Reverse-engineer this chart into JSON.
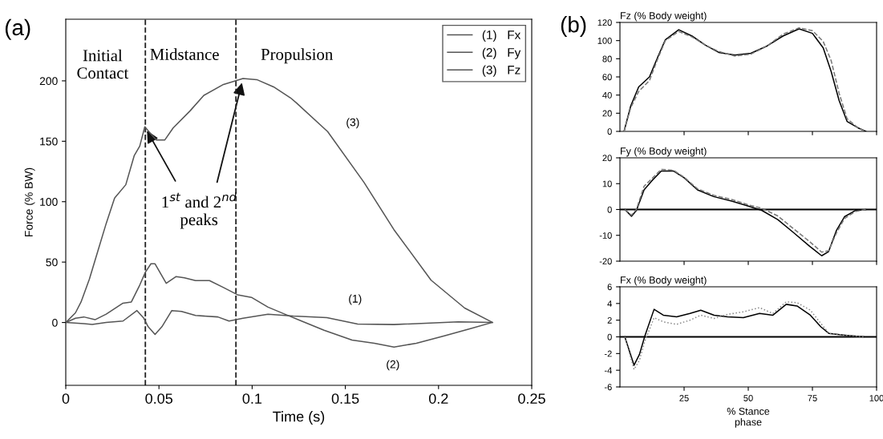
{
  "chart_data": [
    {
      "type": "line",
      "xlabel": "Time (s)",
      "ylabel": "Force (% BW)",
      "xlim": [
        0,
        0.25
      ],
      "ylim": [
        -52,
        251
      ],
      "xticks": [
        0,
        0.05,
        0.1,
        0.15,
        0.2,
        0.25
      ],
      "yticks": [
        0,
        50,
        100,
        150,
        200
      ],
      "grid": false,
      "legend": "top right",
      "series": [
        {
          "name": "(1)   Fx",
          "color": "#555555",
          "x": [
            0,
            0.0097,
            0.0142,
            0.0217,
            0.0307,
            0.0382,
            0.0419,
            0.0442,
            0.0479,
            0.0516,
            0.0569,
            0.0621,
            0.0696,
            0.0816,
            0.0876,
            0.0951,
            0.1085,
            0.122,
            0.1401,
            0.1566,
            0.1761,
            0.2106,
            0.2287
          ],
          "values": [
            0,
            -1,
            -1.6,
            0,
            1.2,
            9.9,
            3.5,
            -3.5,
            -9.9,
            -3.5,
            9.9,
            9.2,
            5.8,
            4.6,
            1.2,
            3.5,
            6.9,
            5.3,
            4,
            -1.3,
            -1.7,
            0.6,
            0
          ]
        },
        {
          "name": "(2)   Fy",
          "color": "#555555",
          "x": [
            0,
            0.0052,
            0.0097,
            0.0157,
            0.0217,
            0.0307,
            0.0352,
            0.0397,
            0.0427,
            0.0457,
            0.0479,
            0.0539,
            0.0591,
            0.0636,
            0.0696,
            0.0771,
            0.0846,
            0.0921,
            0.0996,
            0.1085,
            0.1175,
            0.1265,
            0.1386,
            0.1536,
            0.1656,
            0.1761,
            0.1881,
            0.2031,
            0.2167,
            0.2287
          ],
          "values": [
            0,
            3.5,
            4.6,
            2.3,
            6.9,
            16,
            17,
            31,
            41.6,
            48.6,
            48.6,
            32.4,
            38,
            37,
            34.7,
            34.7,
            29,
            23,
            20.8,
            12.7,
            6.9,
            1.2,
            -6.4,
            -14.5,
            -17.2,
            -20.3,
            -17.2,
            -11,
            -5.2,
            0
          ]
        },
        {
          "name": "(3)   Fz",
          "color": "#555555",
          "x": [
            0,
            0.0052,
            0.0082,
            0.0127,
            0.0172,
            0.0217,
            0.0262,
            0.0322,
            0.0367,
            0.0397,
            0.0424,
            0.0457,
            0.0486,
            0.0531,
            0.0576,
            0.0666,
            0.0741,
            0.0846,
            0.0951,
            0.1025,
            0.1115,
            0.1205,
            0.1236,
            0.1405,
            0.16,
            0.176,
            0.196,
            0.214,
            0.229
          ],
          "values": [
            0,
            8,
            17,
            36,
            59,
            82,
            103,
            114,
            138,
            146,
            162,
            156,
            151,
            151,
            161,
            175,
            188,
            197,
            202,
            201,
            195,
            186,
            182,
            158,
            116,
            77,
            35,
            12,
            0
          ]
        }
      ],
      "ref_lines": [
        {
          "axis": "x",
          "value": 0.0427,
          "color": "#222222",
          "line_style": "dashed"
        },
        {
          "axis": "x",
          "value": 0.0913,
          "color": "#222222",
          "line_style": "dashed"
        }
      ],
      "annotations": [
        "(a)",
        "Initial\nContact",
        "Midstance",
        "Propulsion",
        {
          "text": "1$^{st}$ and 2$^{nd}$\npeaks",
          "x": 0.0424,
          "y": 162
        },
        "(3)",
        "(1)",
        "(2)"
      ]
    },
    {
      "type": "line",
      "title": "Fz (% Body weight)",
      "xlim": [
        0,
        100
      ],
      "ylim": [
        0,
        120
      ],
      "xticks": [
        25,
        50,
        75,
        100
      ],
      "yticks": [
        0,
        20,
        40,
        60,
        80,
        100,
        120
      ],
      "tick_labels": "y",
      "grid": false,
      "series": [
        {
          "color": "#000000",
          "line_style": "solid",
          "x": [
            1.6,
            4.2,
            7.3,
            11.5,
            14.6,
            17.7,
            22.9,
            28.1,
            33.3,
            38.5,
            44.8,
            51,
            57.3,
            63.5,
            69.8,
            75,
            79.2,
            82.3,
            85.4,
            88.5,
            92.7,
            95.8
          ],
          "values": [
            0,
            28,
            49,
            60,
            81,
            101,
            112,
            105,
            95,
            87,
            84,
            86,
            94,
            105,
            113,
            108,
            92,
            66,
            34,
            11,
            4,
            0
          ]
        },
        {
          "color": "#777777",
          "line_style": "dashed",
          "x": [
            1.6,
            4.2,
            7.3,
            11.5,
            14.6,
            17.7,
            22.9,
            28.1,
            33.3,
            38.5,
            44.8,
            51,
            57.3,
            63.5,
            69.8,
            75,
            79.2,
            82.3,
            85.4,
            88.5,
            92.7,
            95.8
          ],
          "values": [
            0,
            26,
            44,
            56,
            79,
            100,
            110,
            104,
            95,
            88,
            83,
            85,
            94,
            107,
            114,
            111,
            99,
            78,
            42,
            14,
            4,
            0
          ]
        }
      ],
      "annotations": [
        "(b)"
      ]
    },
    {
      "type": "line",
      "title": "Fy (% Body weight)",
      "xlim": [
        0,
        100
      ],
      "ylim": [
        -20,
        20
      ],
      "xticks": [
        25,
        50,
        75,
        100
      ],
      "yticks": [
        -20,
        -10,
        0,
        10,
        20
      ],
      "tick_labels": "y",
      "grid": false,
      "series": [
        {
          "color": "#000000",
          "line_style": "solid",
          "x": [
            1.9,
            4.5,
            6.4,
            9.4,
            12.5,
            16.1,
            20.8,
            25,
            30.2,
            36.5,
            43.8,
            50,
            55.2,
            61.5,
            67.7,
            74,
            78.6,
            81.3,
            84.4,
            87.5,
            91.7,
            95.8
          ],
          "values": [
            0,
            -2.6,
            -0.4,
            7.6,
            11.2,
            14.9,
            14.9,
            12.3,
            7.6,
            5,
            3.2,
            1.3,
            -0.3,
            -3.9,
            -9,
            -14.3,
            -17.9,
            -16.3,
            -8,
            -2.8,
            -0.4,
            0
          ]
        },
        {
          "color": "#777777",
          "line_style": "dashed",
          "x": [
            1.9,
            4.5,
            6.4,
            9.4,
            12.5,
            16.1,
            20.8,
            25,
            30.2,
            36.5,
            43.8,
            50,
            55.2,
            61.5,
            67.7,
            74,
            78.6,
            81.3,
            84.4,
            87.5,
            91.7,
            95.8
          ],
          "values": [
            0,
            -2.2,
            0,
            9,
            12,
            15.5,
            15.2,
            12.5,
            8,
            5.5,
            3.8,
            1.8,
            0.5,
            -2.5,
            -7.5,
            -12.5,
            -16.5,
            -16,
            -9,
            -3.5,
            -0.8,
            0
          ]
        }
      ],
      "ref_lines": [
        {
          "axis": "y",
          "value": 0,
          "color": "#000000",
          "line_style": "solid"
        }
      ]
    },
    {
      "type": "line",
      "title": "Fx (% Body weight)",
      "xlabel": "% Stance\nphase",
      "xlim": [
        0,
        100
      ],
      "ylim": [
        -6,
        6
      ],
      "xticks": [
        25,
        50,
        75,
        100
      ],
      "yticks": [
        -6,
        -4,
        -2,
        0,
        2,
        4,
        6
      ],
      "grid": false,
      "series": [
        {
          "color": "#000000",
          "line_style": "solid",
          "x": [
            1.9,
            5.5,
            7.6,
            9.7,
            13.3,
            16.9,
            22.1,
            27.3,
            31.5,
            36.7,
            41.9,
            48.1,
            54.4,
            59.6,
            64.8,
            69,
            74.2,
            78.3,
            81.5,
            87.7,
            95
          ],
          "values": [
            0,
            -3.4,
            -2.1,
            0.1,
            3.3,
            2.6,
            2.4,
            2.8,
            3.2,
            2.6,
            2.4,
            2.3,
            2.8,
            2.6,
            3.9,
            3.7,
            2.6,
            1.2,
            0.4,
            0.2,
            0
          ]
        },
        {
          "color": "#888888",
          "line_style": "dotted",
          "x": [
            1.9,
            5.5,
            7.6,
            9.7,
            13.3,
            16.9,
            22.1,
            27.3,
            31.5,
            36.7,
            41.9,
            48.1,
            54.4,
            59.6,
            64.8,
            69,
            74.2,
            78.3,
            81.5,
            87.7,
            95
          ],
          "values": [
            0,
            -3.9,
            -2.8,
            -0.5,
            2.3,
            1.8,
            1.5,
            2,
            2.6,
            2.2,
            2.7,
            3,
            3.5,
            2.8,
            4.2,
            4.1,
            3.2,
            1.6,
            0.4,
            0.2,
            0
          ]
        }
      ],
      "ref_lines": [
        {
          "axis": "y",
          "value": 0,
          "color": "#000000",
          "line_style": "solid"
        }
      ]
    }
  ]
}
